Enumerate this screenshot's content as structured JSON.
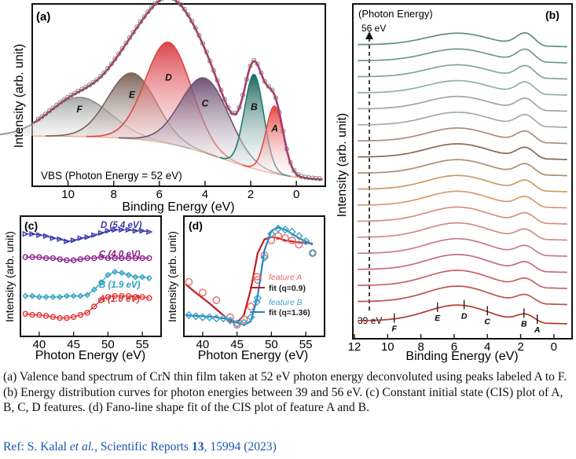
{
  "chart_data": [
    {
      "panel": "a",
      "type": "line",
      "title": "VBS (Photon Energy = 52 eV)",
      "xlabel": "Binding Energy (eV)",
      "ylabel": "Intensity (arb. unit)",
      "xlim": [
        11.5,
        -1.2
      ],
      "ylim": [
        0,
        1.0
      ],
      "xticks": [
        10,
        8,
        6,
        4,
        2,
        0
      ],
      "peaks": [
        {
          "label": "F",
          "center": 9.5,
          "height": 0.22,
          "width": 1.35,
          "color": "#8c8c8c"
        },
        {
          "label": "E",
          "center": 7.2,
          "height": 0.37,
          "width": 1.05,
          "color": "#7a6258"
        },
        {
          "label": "D",
          "center": 5.6,
          "height": 0.57,
          "width": 1.0,
          "color": "#e0453f"
        },
        {
          "label": "C",
          "center": 4.0,
          "height": 0.42,
          "width": 1.05,
          "color": "#6f5470"
        },
        {
          "label": "B",
          "center": 1.85,
          "height": 0.53,
          "width": 0.42,
          "color": "#1f7a73"
        },
        {
          "label": "A",
          "center": 0.95,
          "height": 0.38,
          "width": 0.38,
          "color": "#e84a4a"
        }
      ],
      "background": "Shirley-type (approx.)",
      "data_label": "experimental points (circles) with fit (line)"
    },
    {
      "panel": "b",
      "type": "line",
      "title": "(Photon Energy)",
      "xlabel": "Binding Energy (eV)",
      "ylabel": "Intensity (arb. unit)",
      "xlim": [
        12,
        -1
      ],
      "xticks": [
        12,
        10,
        8,
        6,
        4,
        2,
        0
      ],
      "photon_energy_range": [
        "39 eV",
        "56 eV"
      ],
      "n_curves": 18,
      "markers": [
        {
          "label": "F",
          "energy": 9.6
        },
        {
          "label": "E",
          "energy": 7.0
        },
        {
          "label": "D",
          "energy": 5.4
        },
        {
          "label": "C",
          "energy": 4.0
        },
        {
          "label": "B",
          "energy": 1.8
        },
        {
          "label": "A",
          "energy": 1.0
        }
      ]
    },
    {
      "panel": "c",
      "type": "line",
      "xlabel": "Photon Energy (eV)",
      "ylabel": "Intensity (arb. unit)",
      "xlim": [
        37.5,
        57.5
      ],
      "xticks": [
        40,
        45,
        50,
        55
      ],
      "series": [
        {
          "name": "D (5.4 eV)",
          "color": "#3b3bb0",
          "marker": "triangle",
          "x": [
            38,
            39,
            40,
            41,
            42,
            43,
            44,
            45,
            46,
            47,
            48,
            49,
            50,
            51,
            52,
            53,
            54,
            55,
            56
          ],
          "y": [
            0.96,
            0.96,
            0.95,
            0.94,
            0.92,
            0.91,
            0.89,
            0.9,
            0.92,
            0.93,
            0.95,
            0.97,
            0.99,
            1.0,
            1.0,
            1.0,
            0.99,
            0.99,
            0.98
          ]
        },
        {
          "name": "C (4.0 eV)",
          "color": "#8a1f8a",
          "marker": "circle",
          "x": [
            38,
            39,
            40,
            41,
            42,
            43,
            44,
            45,
            46,
            47,
            48,
            49,
            50,
            51,
            52,
            53,
            54,
            55,
            56
          ],
          "y": [
            0.74,
            0.74,
            0.74,
            0.73,
            0.73,
            0.72,
            0.71,
            0.71,
            0.72,
            0.73,
            0.73,
            0.74,
            0.73,
            0.73,
            0.73,
            0.73,
            0.73,
            0.73,
            0.73
          ]
        },
        {
          "name": "B (1.9 eV)",
          "color": "#2a9fbf",
          "marker": "diamond",
          "x": [
            38,
            39,
            40,
            41,
            42,
            43,
            44,
            45,
            46,
            47,
            48,
            49,
            50,
            51,
            52,
            53,
            54,
            55,
            56
          ],
          "y": [
            0.37,
            0.37,
            0.36,
            0.36,
            0.36,
            0.36,
            0.37,
            0.37,
            0.37,
            0.38,
            0.43,
            0.5,
            0.57,
            0.6,
            0.59,
            0.57,
            0.55,
            0.55,
            0.54
          ]
        },
        {
          "name": "A (1.0 eV)",
          "color": "#e03232",
          "marker": "circle",
          "x": [
            38,
            39,
            40,
            41,
            42,
            43,
            44,
            45,
            46,
            47,
            48,
            49,
            50,
            51,
            52,
            53,
            54,
            55,
            56
          ],
          "y": [
            0.2,
            0.19,
            0.19,
            0.18,
            0.17,
            0.16,
            0.16,
            0.17,
            0.19,
            0.21,
            0.27,
            0.33,
            0.36,
            0.37,
            0.37,
            0.37,
            0.36,
            0.36,
            0.35
          ]
        }
      ]
    },
    {
      "panel": "d",
      "type": "scatter",
      "xlabel": "Photon Energy (eV)",
      "ylabel": "Intensity (arb. unit)",
      "xlim": [
        37.5,
        57.5
      ],
      "ylim": [
        0,
        1.0
      ],
      "xticks": [
        40,
        45,
        50,
        55
      ],
      "series": [
        {
          "name": "feature A",
          "fit_name": "fit (q=0.9)",
          "color": "#e86a6a",
          "fit_color": "#c01e1e",
          "marker": "circle",
          "x": [
            38,
            40,
            42,
            44,
            45,
            46,
            47,
            48,
            49,
            50,
            51,
            52,
            53,
            54,
            56
          ],
          "y": [
            0.45,
            0.35,
            0.28,
            0.12,
            0.05,
            0.1,
            0.22,
            0.47,
            0.7,
            0.84,
            0.88,
            0.86,
            0.84,
            0.8,
            0.72
          ],
          "fit_x": [
            37.5,
            39,
            41,
            43,
            44,
            45,
            46,
            47,
            48,
            49,
            50,
            51,
            52,
            54,
            56
          ],
          "fit_y": [
            0.43,
            0.35,
            0.25,
            0.14,
            0.08,
            0.07,
            0.14,
            0.38,
            0.72,
            0.85,
            0.87,
            0.86,
            0.84,
            0.82,
            0.81
          ]
        },
        {
          "name": "feature B",
          "fit_name": "fit (q=1.36)",
          "color": "#3aa6c8",
          "fit_color": "#2f7fc0",
          "marker": "diamond",
          "x": [
            38,
            39,
            40,
            41,
            42,
            43,
            44,
            45,
            46,
            47,
            48,
            49,
            50,
            51,
            52,
            53,
            54,
            55,
            56
          ],
          "y": [
            0.14,
            0.13,
            0.12,
            0.12,
            0.11,
            0.11,
            0.09,
            0.06,
            0.07,
            0.12,
            0.3,
            0.68,
            0.9,
            0.95,
            0.94,
            0.92,
            0.88,
            0.83,
            0.72
          ],
          "fit_x": [
            37.5,
            40,
            42,
            44,
            45,
            46,
            47,
            48,
            49,
            50,
            51,
            52,
            53,
            54,
            56
          ],
          "fit_y": [
            0.14,
            0.13,
            0.12,
            0.1,
            0.07,
            0.05,
            0.08,
            0.32,
            0.75,
            0.93,
            0.96,
            0.94,
            0.9,
            0.86,
            0.8
          ]
        }
      ]
    }
  ],
  "caption": "(a) Valence band spectrum of CrN thin film taken at 52 eV photon energy deconvoluted using peaks labeled A to F. (b) Energy distribution curves for photon energies between 39 and 56 eV. (c) Constant initial state (CIS) plot of A, B, C, D features. (d) Fano-line shape fit of the CIS plot of feature A and B.",
  "reference": {
    "prefix": "Ref: S. Kalal ",
    "etal": "et al.",
    "journal": ", Scientific Reports ",
    "volume": "13",
    "suffix": ", 15994 (2023)"
  },
  "panel_labels": {
    "a": "(a)",
    "b": "(b)",
    "c": "(c)",
    "d": "(d)"
  }
}
